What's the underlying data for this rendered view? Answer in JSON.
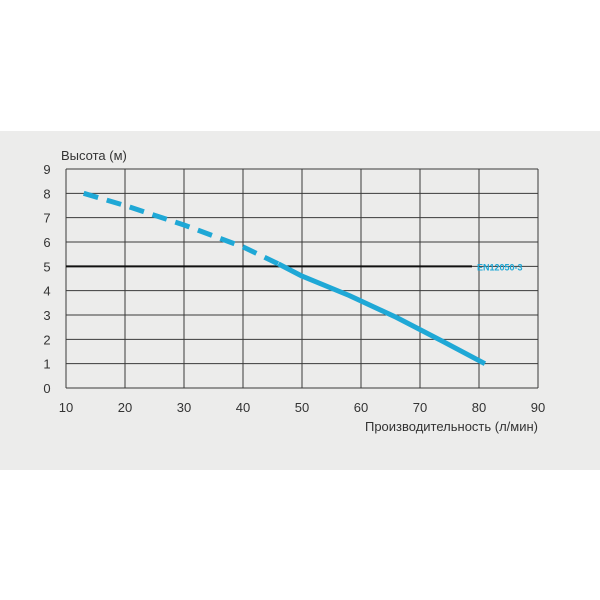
{
  "chart_data": {
    "type": "line",
    "title": "",
    "ylabel": "Высота (м)",
    "xlabel": "Производительность (л/мин)",
    "xlim": [
      10,
      90
    ],
    "ylim": [
      0,
      9
    ],
    "x_ticks": [
      10,
      20,
      30,
      40,
      50,
      60,
      70,
      80,
      90
    ],
    "y_ticks": [
      0,
      1,
      2,
      3,
      4,
      5,
      6,
      7,
      8,
      9
    ],
    "grid": true,
    "series": [
      {
        "name": "",
        "color": "#1fa8d6",
        "style": "dashed",
        "points": [
          [
            13,
            8.0
          ],
          [
            20,
            7.5
          ],
          [
            30,
            6.7
          ],
          [
            40,
            5.8
          ],
          [
            46,
            5.1
          ]
        ]
      },
      {
        "name": "",
        "color": "#1fa8d6",
        "style": "solid",
        "points": [
          [
            46,
            5.1
          ],
          [
            50,
            4.6
          ],
          [
            58,
            3.8
          ],
          [
            66,
            2.9
          ],
          [
            74,
            1.9
          ],
          [
            81,
            1.0
          ]
        ]
      }
    ],
    "reference_line": {
      "y": 5,
      "label": "EN12050-3",
      "color": "#111111",
      "label_color": "#1fa8d6"
    }
  }
}
